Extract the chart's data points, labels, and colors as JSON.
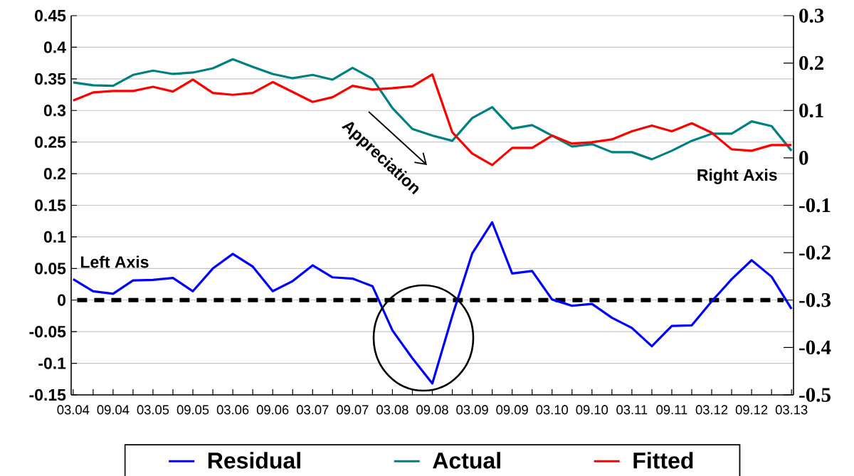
{
  "chart_data": {
    "type": "line",
    "categories": [
      "03.04",
      null,
      "09.04",
      null,
      "03.05",
      null,
      "09.05",
      null,
      "03.06",
      null,
      "09.06",
      null,
      "03.07",
      null,
      "09.07",
      null,
      "03.08",
      null,
      "09.08",
      null,
      "03.09",
      null,
      "09.09",
      null,
      "03.10",
      null,
      "09.10",
      null,
      "03.11",
      null,
      "09.11",
      null,
      "03.12",
      null,
      "09.12",
      null,
      "03.13"
    ],
    "series": [
      {
        "name": "Residual",
        "color": "#0000ff",
        "axis": "y",
        "values": [
          0.033,
          0.014,
          0.01,
          0.031,
          0.032,
          0.035,
          0.014,
          0.05,
          0.073,
          0.053,
          0.014,
          0.03,
          0.055,
          0.036,
          0.034,
          0.022,
          -0.048,
          -0.092,
          -0.132,
          -0.025,
          0.074,
          0.123,
          0.042,
          0.046,
          0.001,
          -0.009,
          -0.006,
          -0.028,
          -0.044,
          -0.073,
          -0.041,
          -0.04,
          -0.002,
          0.033,
          0.063,
          0.037,
          -0.014
        ]
      },
      {
        "name": "Actual",
        "color": "#008080",
        "axis": "y2",
        "values": [
          0.159,
          0.153,
          0.152,
          0.175,
          0.184,
          0.177,
          0.18,
          0.189,
          0.208,
          0.192,
          0.177,
          0.168,
          0.175,
          0.165,
          0.19,
          0.167,
          0.105,
          0.061,
          0.047,
          0.036,
          0.084,
          0.107,
          0.062,
          0.069,
          0.047,
          0.024,
          0.029,
          0.012,
          0.012,
          -0.003,
          0.015,
          0.036,
          0.051,
          0.051,
          0.077,
          0.067,
          0.015
        ]
      },
      {
        "name": "Fitted",
        "color": "#ff0000",
        "axis": "y2",
        "values": [
          0.121,
          0.138,
          0.141,
          0.141,
          0.15,
          0.14,
          0.165,
          0.137,
          0.133,
          0.137,
          0.16,
          0.139,
          0.118,
          0.128,
          0.152,
          0.144,
          0.147,
          0.151,
          0.176,
          0.054,
          0.009,
          -0.015,
          0.021,
          0.021,
          0.047,
          0.03,
          0.033,
          0.039,
          0.056,
          0.068,
          0.056,
          0.073,
          0.053,
          0.018,
          0.015,
          0.027,
          0.027
        ]
      }
    ],
    "ylim": [
      -0.15,
      0.45
    ],
    "yticks": [
      -0.15,
      -0.1,
      -0.05,
      0,
      0.05,
      0.1,
      0.15,
      0.2,
      0.25,
      0.3,
      0.35,
      0.4,
      0.45
    ],
    "y2lim": [
      -0.5,
      0.3
    ],
    "y2ticks": [
      -0.5,
      -0.4,
      -0.3,
      -0.2,
      -0.1,
      0,
      0.1,
      0.2,
      0.3
    ],
    "ref_lines": [
      {
        "axis": "y",
        "value": 0,
        "color": "#000000",
        "line_style": "dashed"
      }
    ],
    "annotations": [
      "Appreciation",
      "Left Axis",
      "Right Axis"
    ],
    "grid": "y",
    "legend": "bottom",
    "line_style": "solid",
    "marker": "none"
  }
}
